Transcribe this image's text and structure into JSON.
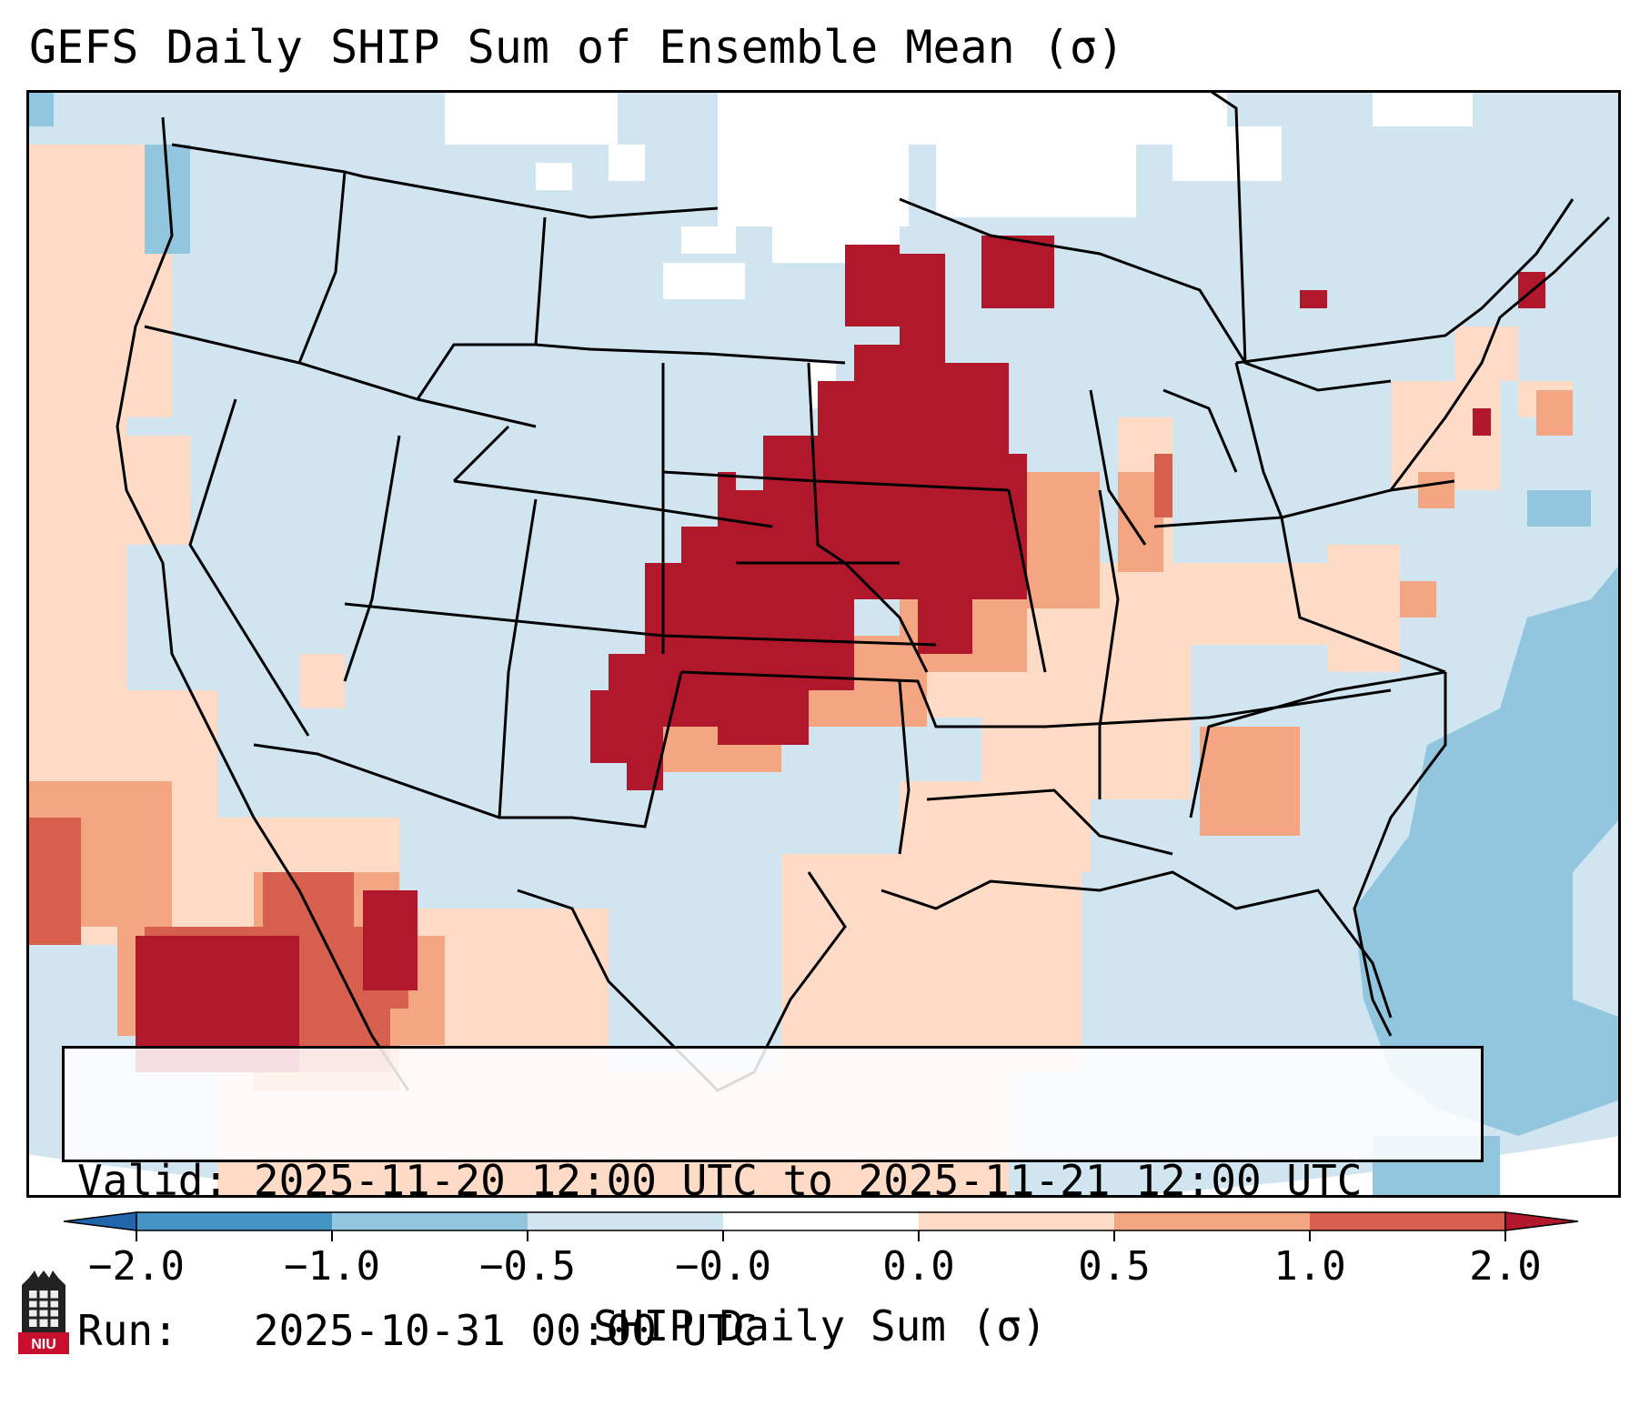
{
  "title": "GEFS Daily SHIP Sum of Ensemble Mean (σ)",
  "info": {
    "valid_label": "Valid:",
    "valid_value": "2025-11-20 12:00 UTC to 2025-11-21 12:00 UTC",
    "run_label": "Run:",
    "run_value": "2025-10-31 00:00 UTC"
  },
  "colorbar": {
    "label": "SHIP Daily Sum (σ)",
    "ticks": [
      "−2.0",
      "−1.0",
      "−0.5",
      "−0.0",
      "0.0",
      "0.5",
      "1.0",
      "2.0"
    ],
    "colors": [
      "#2166ac",
      "#4393c3",
      "#92c5de",
      "#d1e5f0",
      "#ffffff",
      "#fddbc7",
      "#f4a582",
      "#d6604d",
      "#b2182b"
    ]
  },
  "logo_text": "NIU",
  "colors": {
    "ocean_outside": "#ffffff",
    "land_base": "#d1e5f0",
    "state_lines": "#000000"
  }
}
